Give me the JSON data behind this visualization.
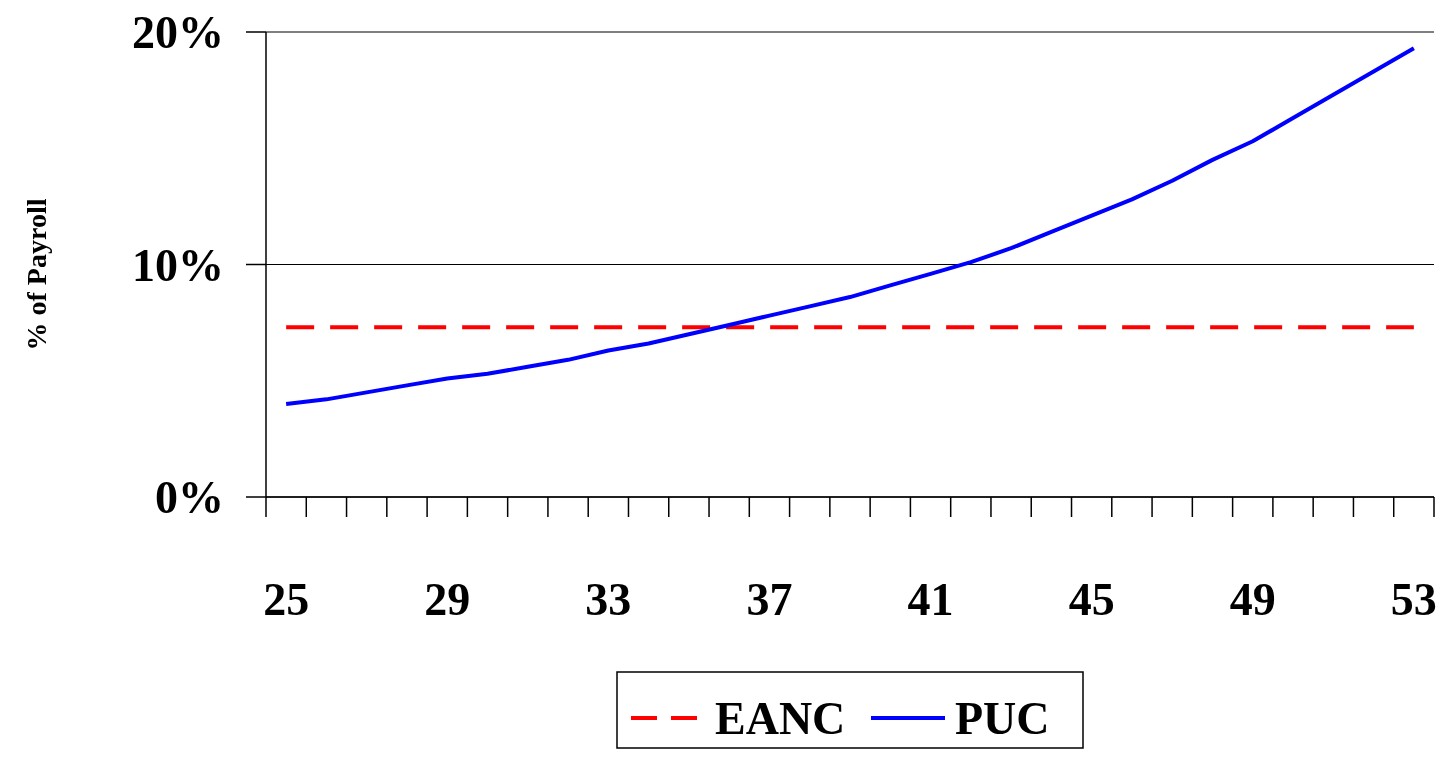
{
  "chart_data": {
    "type": "line",
    "ylabel": "% of Payroll",
    "categories": [
      "25",
      null,
      null,
      null,
      "29",
      null,
      null,
      null,
      "33",
      null,
      null,
      null,
      "37",
      null,
      null,
      null,
      "41",
      null,
      null,
      null,
      "45",
      null,
      null,
      null,
      "49",
      null,
      null,
      null,
      "53"
    ],
    "series": [
      {
        "name": "EANC",
        "color": "#ff0000",
        "line_style": "dashed",
        "values": [
          7.3,
          7.3,
          7.3,
          7.3,
          7.3,
          7.3,
          7.3,
          7.3,
          7.3,
          7.3,
          7.3,
          7.3,
          7.3,
          7.3,
          7.3,
          7.3,
          7.3,
          7.3,
          7.3,
          7.3,
          7.3,
          7.3,
          7.3,
          7.3,
          7.3,
          7.3,
          7.3,
          7.3,
          7.3
        ]
      },
      {
        "name": "PUC",
        "color": "#0000ff",
        "line_style": "solid",
        "values": [
          4.0,
          4.2,
          4.5,
          4.8,
          5.1,
          5.3,
          5.6,
          5.9,
          6.3,
          6.6,
          7.0,
          7.4,
          7.8,
          8.2,
          8.6,
          9.1,
          9.6,
          10.1,
          10.7,
          11.4,
          12.1,
          12.8,
          13.6,
          14.5,
          15.3,
          16.3,
          17.3,
          18.3,
          19.3
        ]
      }
    ],
    "ylim": [
      0,
      20
    ],
    "yticks": [
      {
        "value": 0,
        "label": "0%"
      },
      {
        "value": 10,
        "label": "10%"
      },
      {
        "value": 20,
        "label": "20%"
      }
    ],
    "grid": "y",
    "legend": "bottom"
  }
}
